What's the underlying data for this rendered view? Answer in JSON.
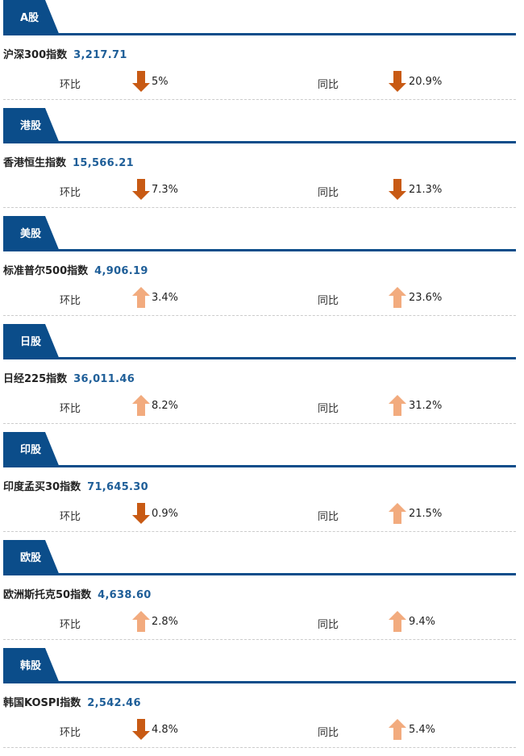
{
  "colors": {
    "brand": "#0b4d8a",
    "down": "#c85a14",
    "up": "#f2ab7e",
    "value": "#1e5e98"
  },
  "labels": {
    "mom": "环比",
    "yoy": "同比"
  },
  "sections": [
    {
      "tab": "A股",
      "index_name": "沪深300指数",
      "index_value": "3,217.71",
      "mom": {
        "dir": "down",
        "value": "5%"
      },
      "yoy": {
        "dir": "down",
        "value": "20.9%"
      }
    },
    {
      "tab": "港股",
      "index_name": "香港恒生指数",
      "index_value": "15,566.21",
      "mom": {
        "dir": "down",
        "value": "7.3%"
      },
      "yoy": {
        "dir": "down",
        "value": "21.3%"
      }
    },
    {
      "tab": "美股",
      "index_name": "标准普尔500指数",
      "index_value": "4,906.19",
      "mom": {
        "dir": "up",
        "value": "3.4%"
      },
      "yoy": {
        "dir": "up",
        "value": "23.6%"
      }
    },
    {
      "tab": "日股",
      "index_name": "日经225指数",
      "index_value": "36,011.46",
      "mom": {
        "dir": "up",
        "value": "8.2%"
      },
      "yoy": {
        "dir": "up",
        "value": "31.2%"
      }
    },
    {
      "tab": "印股",
      "index_name": "印度孟买30指数",
      "index_value": "71,645.30",
      "mom": {
        "dir": "down",
        "value": "0.9%"
      },
      "yoy": {
        "dir": "up",
        "value": "21.5%"
      }
    },
    {
      "tab": "欧股",
      "index_name": "欧洲斯托克50指数",
      "index_value": "4,638.60",
      "mom": {
        "dir": "up",
        "value": "2.8%"
      },
      "yoy": {
        "dir": "up",
        "value": "9.4%"
      }
    },
    {
      "tab": "韩股",
      "index_name": "韩国KOSPI指数",
      "index_value": "2,542.46",
      "mom": {
        "dir": "down",
        "value": "4.8%"
      },
      "yoy": {
        "dir": "up",
        "value": "5.4%"
      }
    }
  ]
}
